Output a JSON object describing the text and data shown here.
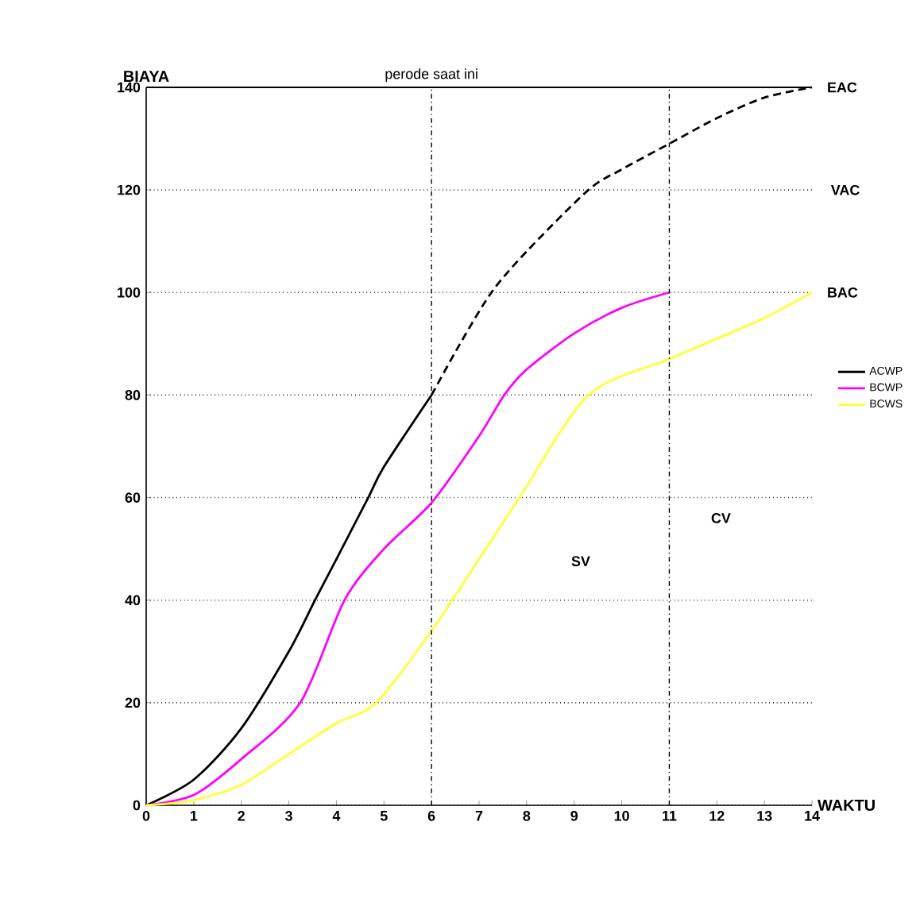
{
  "chart_data": {
    "type": "line",
    "xlabel": "WAKTU",
    "ylabel": "BIAYA",
    "xlim": [
      0,
      14
    ],
    "ylim": [
      0,
      140
    ],
    "xticks": [
      0,
      1,
      2,
      3,
      4,
      5,
      6,
      7,
      8,
      9,
      10,
      11,
      12,
      13,
      14
    ],
    "yticks": [
      0,
      20,
      40,
      60,
      80,
      100,
      120,
      140
    ],
    "grid": "y",
    "legend": "right",
    "series": [
      {
        "name": "ACWP",
        "color": "#000000",
        "x": [
          0,
          1,
          2,
          3,
          3.55,
          4,
          4.67,
          5,
          6
        ],
        "values": [
          0,
          5,
          15,
          30,
          40,
          48,
          60,
          66,
          80
        ]
      },
      {
        "color": "#000000",
        "line_style": "dashed",
        "x": [
          6,
          6.6,
          7.26,
          8,
          9.3,
          10,
          11,
          12,
          13,
          14
        ],
        "values": [
          80,
          90,
          100,
          108,
          120,
          124,
          129,
          134,
          138,
          140
        ]
      },
      {
        "name": "BCWP",
        "color": "#ff00ff",
        "x": [
          0,
          1,
          2,
          3.24,
          4.17,
          5,
          6,
          7,
          7.53,
          8,
          9,
          10,
          11
        ],
        "values": [
          0,
          2,
          9,
          20,
          40,
          50,
          59,
          72,
          80,
          85,
          92,
          97,
          100
        ]
      },
      {
        "name": "BCWS",
        "color": "#ffff33",
        "x": [
          0,
          1,
          2,
          3,
          4,
          4.84,
          6,
          7,
          7.85,
          9.3,
          11,
          12,
          13,
          14
        ],
        "values": [
          0,
          1,
          4,
          10,
          16,
          20,
          34,
          48,
          60,
          80,
          87,
          91,
          95,
          100
        ]
      }
    ],
    "ref_lines": [
      {
        "axis": "x",
        "value": 6,
        "label": "perode saat ini",
        "line_style": "dashed"
      },
      {
        "axis": "x",
        "value": 11,
        "line_style": "dashed"
      },
      {
        "axis": "y",
        "value": 140,
        "line_style": "solid"
      }
    ],
    "annotations": [
      {
        "text": "EAC",
        "x": 14,
        "y": 140
      },
      "VAC",
      {
        "text": "BAC",
        "x": 14,
        "y": 100
      },
      "SV",
      "CV"
    ]
  }
}
